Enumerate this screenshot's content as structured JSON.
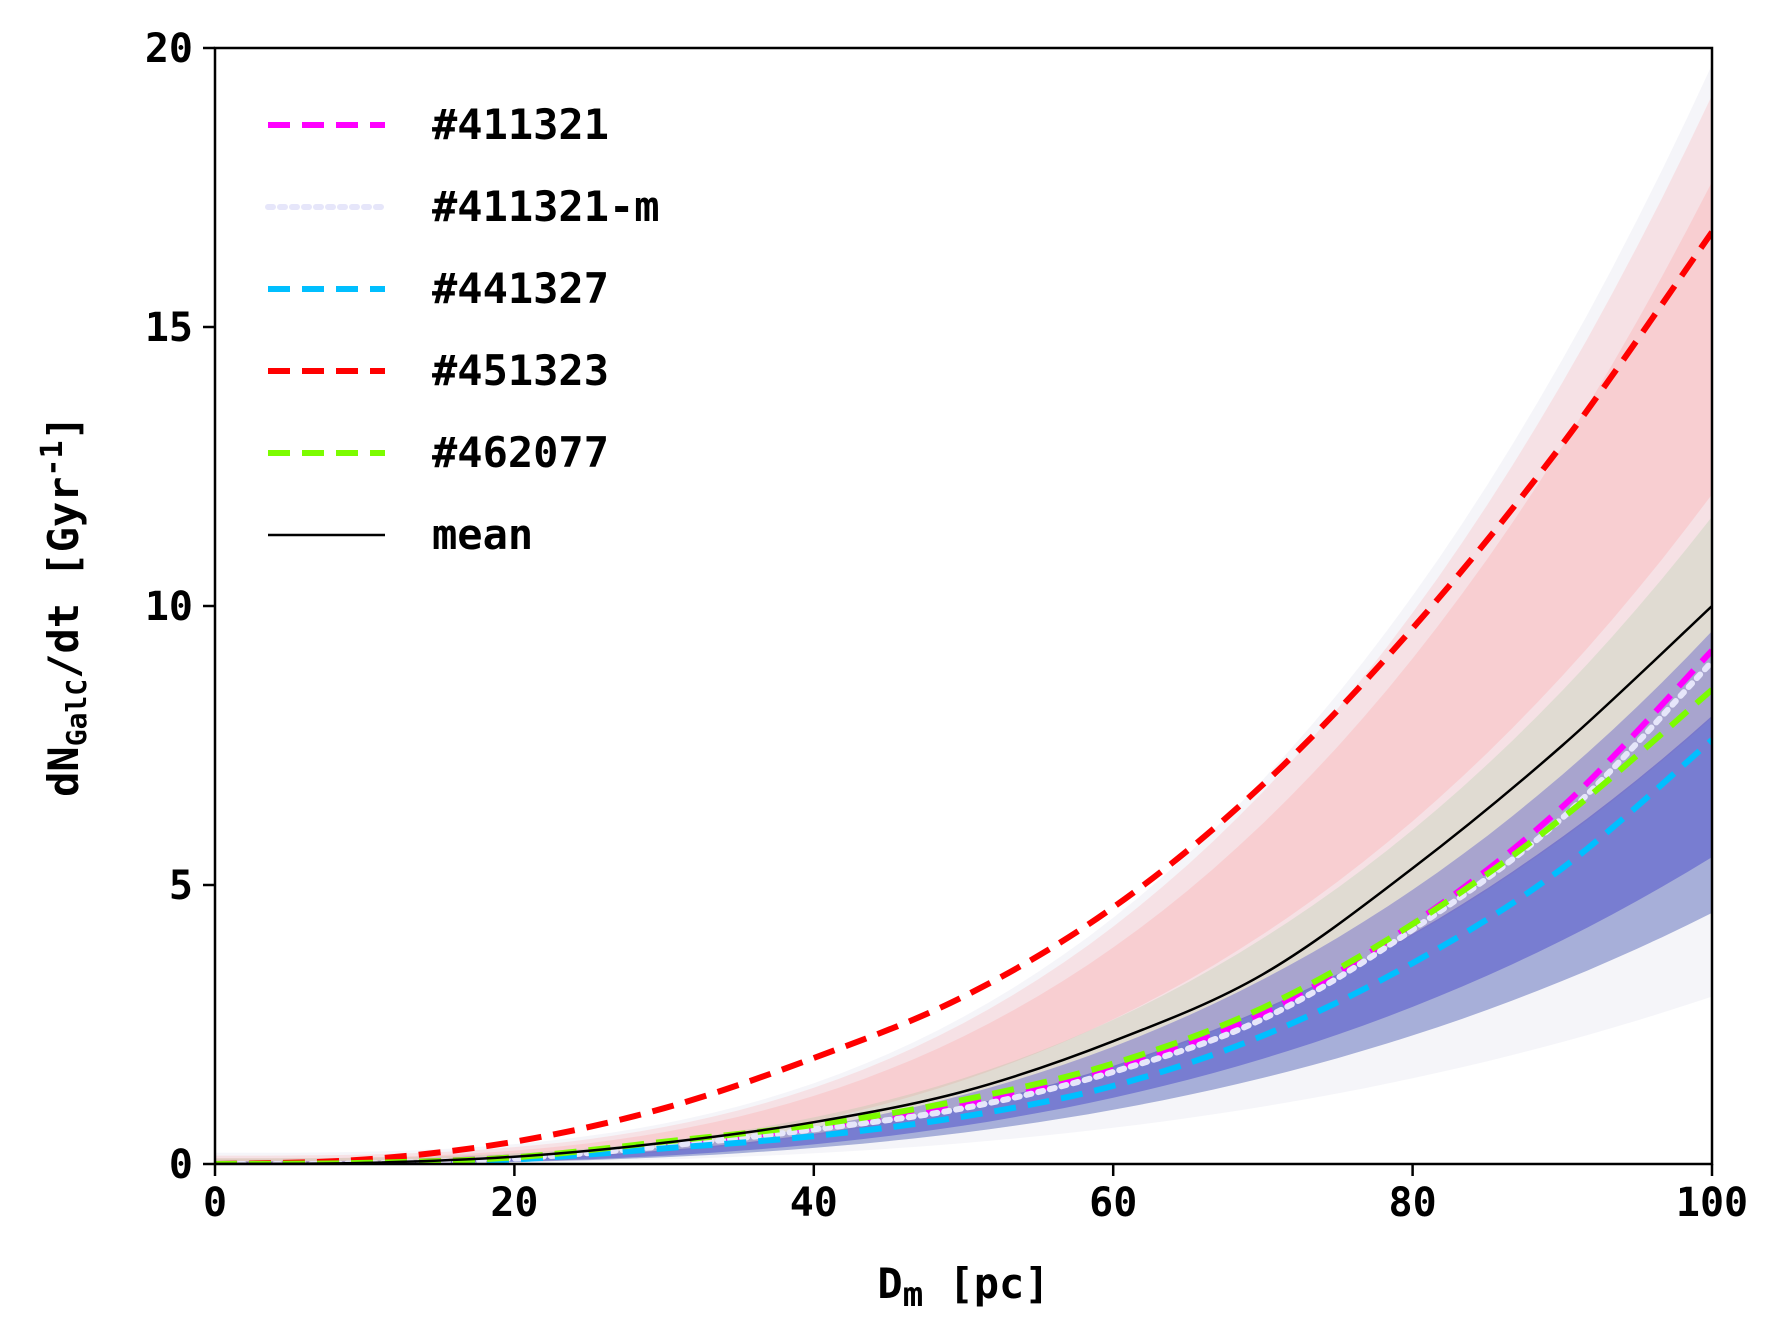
{
  "chart_data": {
    "type": "line",
    "title": "",
    "xlabel": {
      "main": "D",
      "sub": "m",
      "rest": " [pc]"
    },
    "ylabel": {
      "main": "dN",
      "sub": "GalC",
      "rest": "/dt [Gyr",
      "sup": "-1",
      "end": "]"
    },
    "xlim": [
      0,
      100
    ],
    "ylim": [
      0,
      20
    ],
    "xticks": [
      0,
      20,
      40,
      60,
      80,
      100
    ],
    "yticks": [
      0,
      5,
      10,
      15,
      20
    ],
    "legend_position": "top-left",
    "colors": {
      "bg_red": "#ff8c8c",
      "bg_blue": "#4040c8",
      "bg_green": "#90c890",
      "bg_grey": "#c8c8dc"
    },
    "series": [
      {
        "name": "#411321",
        "color": "#ff00ff",
        "style": "dashed",
        "x": [
          0,
          10,
          20,
          30,
          40,
          50,
          60,
          70,
          80,
          90,
          100
        ],
        "y": [
          0,
          0.02,
          0.12,
          0.35,
          0.65,
          1.05,
          1.7,
          2.7,
          4.3,
          6.4,
          9.2
        ]
      },
      {
        "name": "#411321-m",
        "color": "#e6e6fa",
        "style": "dotted",
        "x": [
          0,
          10,
          20,
          30,
          40,
          50,
          60,
          70,
          80,
          90,
          100
        ],
        "y": [
          0,
          0.01,
          0.1,
          0.32,
          0.62,
          1.0,
          1.65,
          2.6,
          4.2,
          6.2,
          9.0
        ]
      },
      {
        "name": "#441327",
        "color": "#00bfff",
        "style": "dashed",
        "x": [
          0,
          10,
          20,
          30,
          40,
          50,
          60,
          70,
          80,
          90,
          100
        ],
        "y": [
          0,
          0.01,
          0.08,
          0.28,
          0.5,
          0.85,
          1.4,
          2.3,
          3.6,
          5.3,
          7.6
        ]
      },
      {
        "name": "#451323",
        "color": "#ff0000",
        "style": "dashed",
        "x": [
          0,
          10,
          20,
          30,
          40,
          50,
          60,
          70,
          80,
          90,
          100
        ],
        "y": [
          0,
          0.08,
          0.4,
          1.0,
          1.9,
          3.0,
          4.6,
          6.8,
          9.6,
          12.9,
          16.7
        ]
      },
      {
        "name": "#462077",
        "color": "#7cfc00",
        "style": "dashed",
        "x": [
          0,
          10,
          20,
          30,
          40,
          50,
          60,
          70,
          80,
          90,
          100
        ],
        "y": [
          0,
          0.02,
          0.12,
          0.4,
          0.7,
          1.15,
          1.8,
          2.8,
          4.3,
          6.2,
          8.5
        ]
      },
      {
        "name": "mean",
        "color": "#000000",
        "style": "solid",
        "x": [
          0,
          10,
          20,
          30,
          40,
          50,
          60,
          70,
          80,
          90,
          100
        ],
        "y": [
          0,
          0.02,
          0.13,
          0.38,
          0.75,
          1.3,
          2.2,
          3.4,
          5.3,
          7.5,
          10.0
        ]
      }
    ]
  }
}
